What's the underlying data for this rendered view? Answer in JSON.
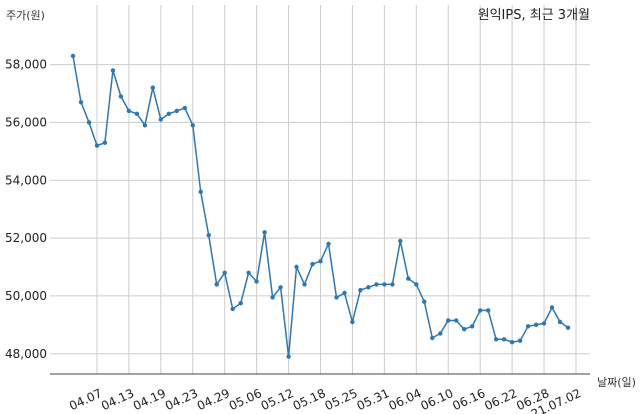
{
  "chart_data": {
    "type": "line",
    "title": "원익IPS, 최근 3개월",
    "xlabel": "날짜(일)",
    "ylabel": "주가(원)",
    "ylim": [
      47300,
      59300
    ],
    "yticks": [
      48000,
      50000,
      52000,
      54000,
      56000,
      58000
    ],
    "ytick_labels": [
      "48,000",
      "50,000",
      "52,000",
      "54,000",
      "56,000",
      "58,000"
    ],
    "xtick_labels": [
      "04.07",
      "04.13",
      "04.19",
      "04.23",
      "04.29",
      "05.06",
      "05.12",
      "05.18",
      "05.25",
      "05.31",
      "06.04",
      "06.10",
      "06.16",
      "06.22",
      "06.28",
      "21.07.02"
    ],
    "xtick_index": [
      3,
      7,
      11,
      15,
      19,
      23,
      27,
      31,
      35,
      39,
      43,
      47,
      51,
      55,
      59,
      63
    ],
    "grid": true,
    "line_color": "#2e77b0",
    "series": [
      {
        "values": [
          58300,
          56700,
          56000,
          55200,
          55300,
          57800,
          56900,
          56400,
          56300,
          55900,
          57200,
          56100,
          56300,
          56400,
          56500,
          55900,
          53600,
          52100,
          50400,
          50800,
          49550,
          49750,
          50800,
          50500,
          52200,
          49950,
          50300,
          47900,
          51000,
          50400,
          51100,
          51200,
          51800,
          49950,
          50100,
          49100,
          50200,
          50300,
          50400,
          50400,
          50400,
          51900,
          50600,
          50400,
          49800,
          48550,
          48700,
          49150,
          49150,
          48850,
          48950,
          49500,
          49500,
          48500,
          48500,
          48400,
          48450,
          48950,
          49000,
          49050,
          49600,
          49100,
          48900
        ]
      }
    ]
  }
}
